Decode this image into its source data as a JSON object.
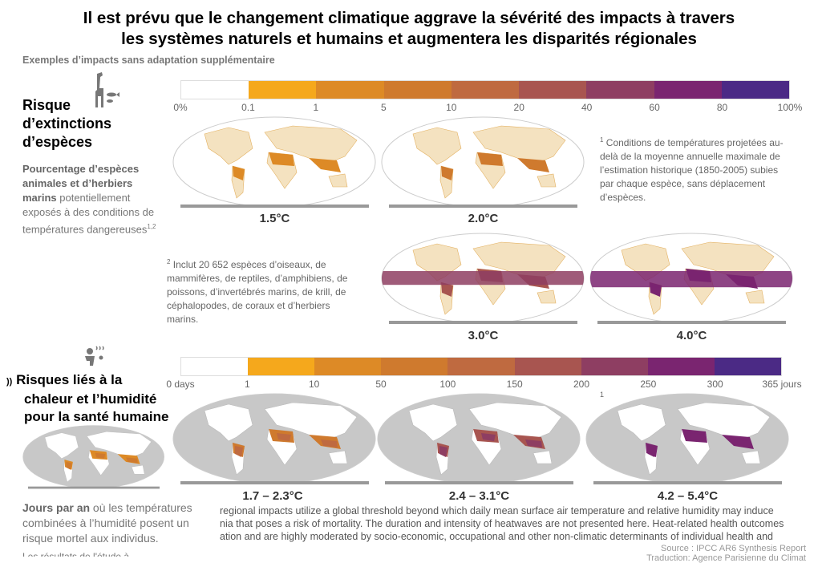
{
  "title_line1": "Il est prévu que le changement climatique aggrave la sévérité des impacts à travers",
  "title_line2": "les systèmes naturels et humains et augmentera les disparités régionales",
  "subtitle": "Exemples d’impacts sans adaptation supplémentaire",
  "species": {
    "heading": [
      "Risque",
      "d’extinctions",
      "d’espèces"
    ],
    "desc_bold": "Pourcentage d’espèces animales et d’herbiers marins",
    "desc_rest": " potentiellement exposés à des conditions de températures dangereuses",
    "desc_sup": "1,2",
    "scale_colors": [
      "#ffffff",
      "#f5a81c",
      "#dd8a26",
      "#cf7a2e",
      "#bf6a40",
      "#a85550",
      "#8e3e62",
      "#7a2570",
      "#4b2a85"
    ],
    "scale_ticks": [
      "0%",
      "0.1",
      "1",
      "5",
      "10",
      "20",
      "40",
      "60",
      "80",
      "100%"
    ],
    "maps": [
      {
        "label": "1.5°C",
        "level": 0.15
      },
      {
        "label": "2.0°C",
        "level": 0.3
      },
      {
        "label": "3.0°C",
        "level": 0.6
      },
      {
        "label": "4.0°C",
        "level": 0.85
      }
    ],
    "note1_mark": "1",
    "note1": "Conditions de températures projetées au-delà de la moyenne annuelle maximale de l’estimation historique (1850-2005) subies par chaque espèce, sans déplacement d’espèces.",
    "note2_mark": "2",
    "note2": "Inclut 20 652 espèces d’oiseaux, de mammifères, de reptiles, d’amphibiens, de poissons, d’invertébrés marins, de krill, de céphalopodes, de coraux et d’herbiers marins."
  },
  "heat": {
    "prefix": "))",
    "heading": [
      "Risques liés à la",
      "chaleur et l’humidité",
      "pour la santé humaine"
    ],
    "scale_colors": [
      "#ffffff",
      "#f5a81c",
      "#dd8a26",
      "#cf7a2e",
      "#bf6a40",
      "#a85550",
      "#8e3e62",
      "#7a2570",
      "#4b2a85"
    ],
    "scale_ticks": [
      "0 days",
      "1",
      "10",
      "50",
      "100",
      "150",
      "200",
      "250",
      "300",
      "365 jours"
    ],
    "maps": [
      {
        "label": "1.7 – 2.3°C",
        "level": 0.35
      },
      {
        "label": "2.4 – 3.1°C",
        "level": 0.6
      },
      {
        "label": "4.2 – 5.4°C",
        "level": 0.9
      }
    ],
    "mark": "1",
    "desc_bold": "Jours par an",
    "desc_rest": " où les températures combinées à l’humidité posent un risque mortel aux individus.",
    "desc_cut": "Les résultats de l'étude à ...",
    "english": [
      "regional impacts utilize a global threshold beyond which daily mean surface air temperature and relative humidity may induce",
      "nia that poses a risk of mortality. The duration and intensity of heatwaves are not presented here. Heat-related health outcomes",
      "ation and are highly moderated by socio-economic, occupational and other non-climatic determinants of individual health and"
    ],
    "source": "Source : IPCC AR6 Synthesis Report",
    "translation": "Traduction: Agence Parisienne du Climat"
  }
}
